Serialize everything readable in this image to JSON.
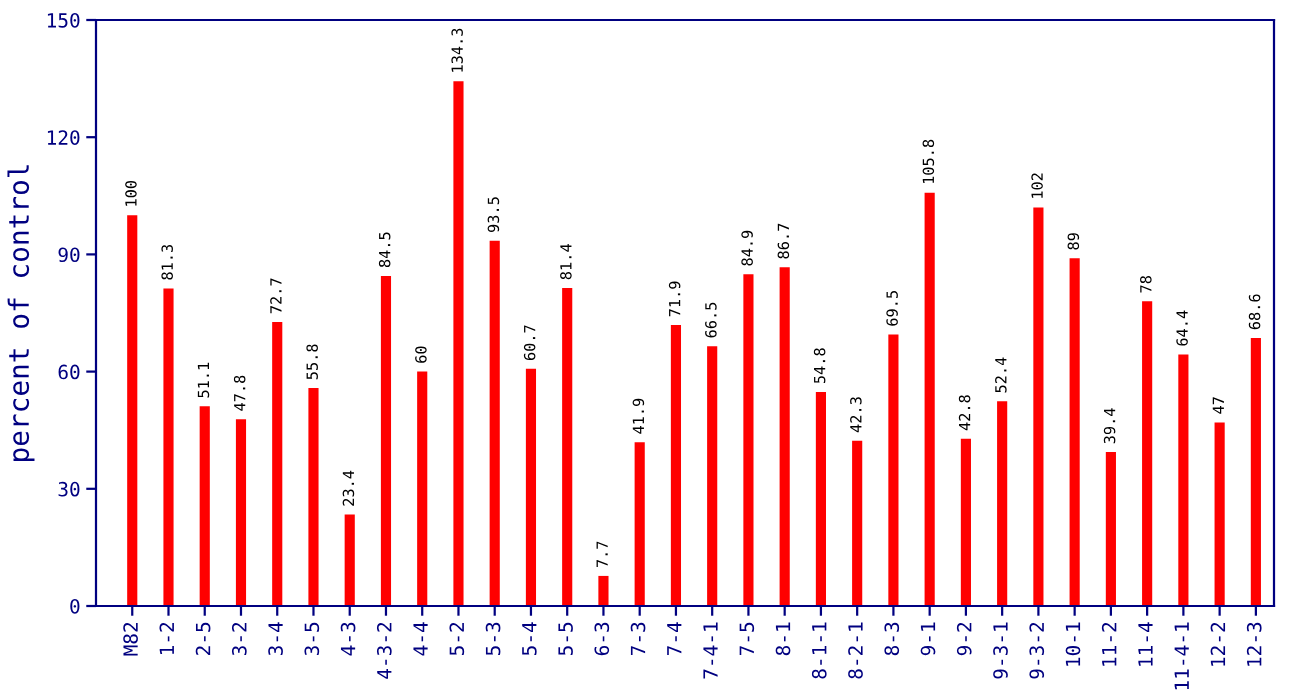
{
  "chart_data": {
    "type": "bar",
    "ylabel": "percent of control",
    "categories": [
      "M82",
      "1-2",
      "2-5",
      "3-2",
      "3-4",
      "3-5",
      "4-3",
      "4-3-2",
      "4-4",
      "5-2",
      "5-3",
      "5-4",
      "5-5",
      "6-3",
      "7-3",
      "7-4",
      "7-4-1",
      "7-5",
      "8-1",
      "8-1-1",
      "8-2-1",
      "8-3",
      "9-1",
      "9-2",
      "9-3-1",
      "9-3-2",
      "10-1",
      "11-2",
      "11-4",
      "11-4-1",
      "12-2",
      "12-3"
    ],
    "values": [
      100,
      81.3,
      51.1,
      47.8,
      72.7,
      55.8,
      23.4,
      84.5,
      60,
      134.3,
      93.5,
      60.7,
      81.4,
      7.7,
      41.9,
      71.9,
      66.5,
      84.9,
      86.7,
      54.8,
      42.3,
      69.5,
      105.8,
      42.8,
      52.4,
      102,
      89,
      39.4,
      78,
      64.4,
      47,
      68.6
    ],
    "color": "#ff0000",
    "ylim": [
      0,
      150
    ],
    "yticks": [
      0,
      30,
      60,
      90,
      120,
      150
    ],
    "grid": false,
    "data_labels": true
  }
}
